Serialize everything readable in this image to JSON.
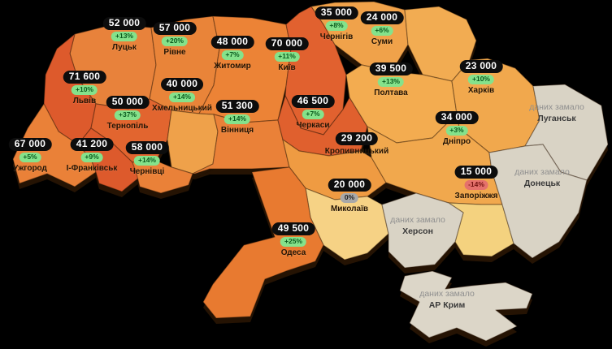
{
  "map": {
    "background": "#000000",
    "nodata_label": "даних замало",
    "palette": {
      "value_pill_bg": "#0D0D0D",
      "value_pill_text": "#FFFFFF",
      "up_badge_bg": "#85E28B",
      "up_badge_text": "#0A5B1E",
      "down_badge_bg": "#E5716C",
      "down_badge_text": "#731210",
      "zero_badge_bg": "#A8A8A8",
      "zero_badge_text": "#1E1E1E",
      "region_name_text": "#241505",
      "nodata_text": "#8F8F8F",
      "nodata_name_text": "#3A3A3A",
      "border_line": "#2A1506",
      "extrusion": "#251303"
    },
    "regions": [
      {
        "id": "volyn",
        "name": "Луцьк",
        "value": "52 000",
        "change": "+13%",
        "trend": "up",
        "fill": "#E8823B"
      },
      {
        "id": "rivne",
        "name": "Рівне",
        "value": "57 000",
        "change": "+20%",
        "trend": "up",
        "fill": "#E98439"
      },
      {
        "id": "zhytomyr",
        "name": "Житомир",
        "value": "48 000",
        "change": "+7%",
        "trend": "up",
        "fill": "#EC8336"
      },
      {
        "id": "kyiv",
        "name": "Київ",
        "value": "70 000",
        "change": "+11%",
        "trend": "up",
        "fill": "#E1612F"
      },
      {
        "id": "chernihiv",
        "name": "Чернігів",
        "value": "35 000",
        "change": "+8%",
        "trend": "up",
        "fill": "#F0A24A"
      },
      {
        "id": "sumy",
        "name": "Суми",
        "value": "24 000",
        "change": "+6%",
        "trend": "up",
        "fill": "#F2AC52"
      },
      {
        "id": "lviv",
        "name": "Львів",
        "value": "71 600",
        "change": "+10%",
        "trend": "up",
        "fill": "#DD5A2C"
      },
      {
        "id": "ternopil",
        "name": "Тернопіль",
        "value": "50 000",
        "change": "+37%",
        "trend": "up",
        "fill": "#E2652F"
      },
      {
        "id": "khmelnytskyi",
        "name": "Хмельницький",
        "value": "40 000",
        "change": "+14%",
        "trend": "up",
        "fill": "#EFA14A"
      },
      {
        "id": "vinnytsia",
        "name": "Вінниця",
        "value": "51 300",
        "change": "+14%",
        "trend": "up",
        "fill": "#EA8138"
      },
      {
        "id": "cherkasy",
        "name": "Черкаси",
        "value": "46 500",
        "change": "+7%",
        "trend": "up",
        "fill": "#E0602E"
      },
      {
        "id": "poltava",
        "name": "Полтава",
        "value": "39 500",
        "change": "+13%",
        "trend": "up",
        "fill": "#F3AC50"
      },
      {
        "id": "kharkiv",
        "name": "Харків",
        "value": "23 000",
        "change": "+10%",
        "trend": "up",
        "fill": "#F1A84D"
      },
      {
        "id": "zakarpattia",
        "name": "Ужгород",
        "value": "67 000",
        "change": "+5%",
        "trend": "up",
        "fill": "#EA8138"
      },
      {
        "id": "ivano_frankivsk",
        "name": "І-Франківськ",
        "value": "41 200",
        "change": "+9%",
        "trend": "up",
        "fill": "#DD5A2C"
      },
      {
        "id": "chernivtsi",
        "name": "Чернівці",
        "value": "58 000",
        "change": "+14%",
        "trend": "up",
        "fill": "#EA8138"
      },
      {
        "id": "kirovohrad",
        "name": "Кропивницький",
        "value": "29 200",
        "change": null,
        "trend": "none",
        "fill": "#EF9B42"
      },
      {
        "id": "dnipro",
        "name": "Дніпро",
        "value": "34 000",
        "change": "+3%",
        "trend": "up",
        "fill": "#F1A84D"
      },
      {
        "id": "zaporizhzhia",
        "name": "Запоріжжя",
        "value": "15 000",
        "change": "-14%",
        "trend": "down",
        "fill": "#F4D27F"
      },
      {
        "id": "mykolaiv",
        "name": "Миколаїв",
        "value": "20 000",
        "change": "0%",
        "trend": "zero",
        "fill": "#F6D285"
      },
      {
        "id": "odesa",
        "name": "Одеса",
        "value": "49 500",
        "change": "+25%",
        "trend": "up",
        "fill": "#E87A30"
      },
      {
        "id": "luhansk",
        "name": "Луганськ",
        "value": null,
        "change": null,
        "trend": "nodata",
        "fill": "#D9D3C5"
      },
      {
        "id": "donetsk",
        "name": "Донецьк",
        "value": null,
        "change": null,
        "trend": "nodata",
        "fill": "#D9D3C5"
      },
      {
        "id": "kherson",
        "name": "Херсон",
        "value": null,
        "change": null,
        "trend": "nodata",
        "fill": "#D9D3C5"
      },
      {
        "id": "crimea",
        "name": "АР Крим",
        "value": null,
        "change": null,
        "trend": "nodata",
        "fill": "#DCD6C8"
      }
    ]
  }
}
